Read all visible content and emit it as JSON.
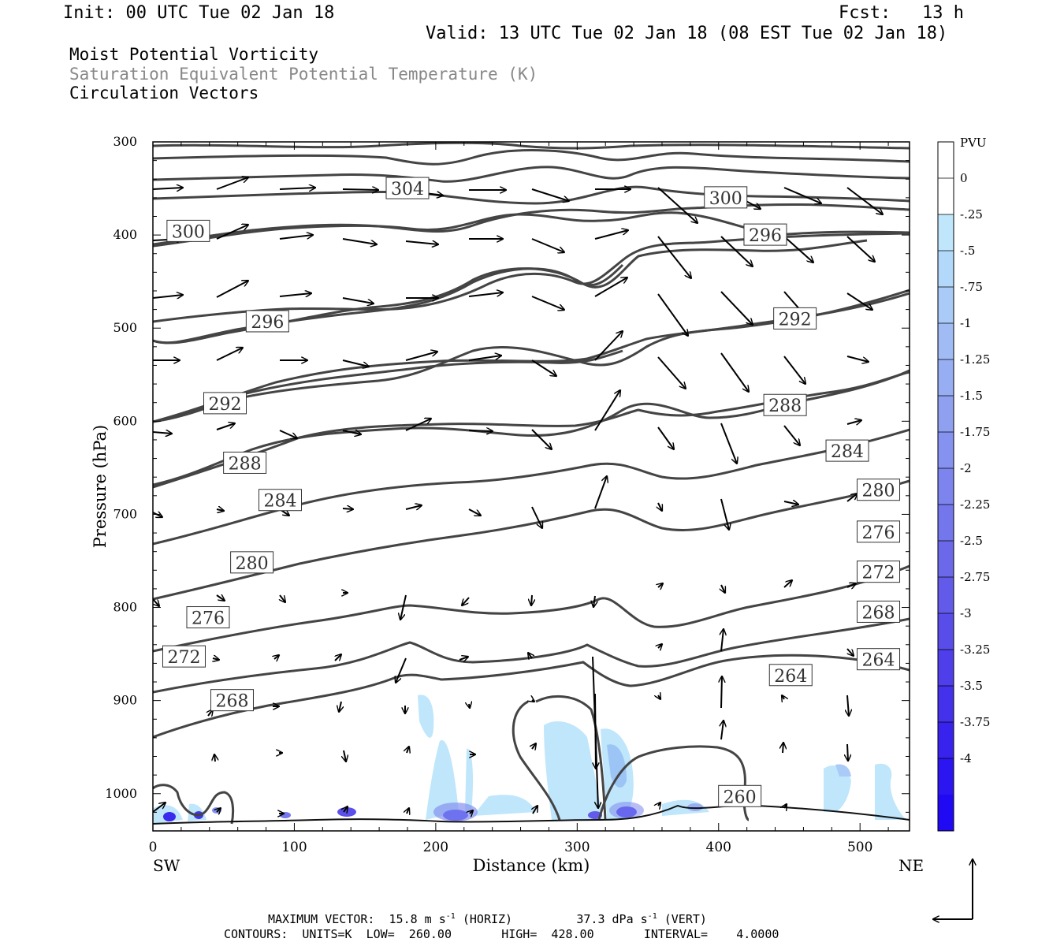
{
  "header": {
    "init": "Init: 00 UTC Tue 02 Jan 18",
    "fcst": "Fcst:   13 h",
    "valid": "Valid: 13 UTC Tue 02 Jan 18 (08 EST Tue 02 Jan 18)",
    "field1": "Moist Potential Vorticity",
    "field2": "Saturation Equivalent Potential Temperature (K)",
    "field3": "Circulation Vectors"
  },
  "footer": {
    "line1_a": "MAXIMUM VECTOR:  15.8 m s",
    "line1_sup1": "-1",
    "line1_b": " (HORIZ)         37.3 dPa s",
    "line1_sup2": "-1",
    "line1_c": " (VERT)",
    "line2": "CONTOURS:  UNITS=K  LOW=  260.00       HIGH=  428.00       INTERVAL=    4.0000"
  },
  "chart_data": {
    "type": "cross-section contour",
    "xlabel": "Distance (km)",
    "ylabel": "Pressure (hPa)",
    "xlim": [
      0,
      535
    ],
    "ylim": [
      1040,
      300
    ],
    "x_ticks": [
      0,
      100,
      200,
      300,
      400,
      500
    ],
    "x_tick_labels": [
      "0",
      "100",
      "200",
      "300",
      "400",
      "500"
    ],
    "y_ticks": [
      300,
      400,
      500,
      600,
      700,
      800,
      900,
      1000
    ],
    "y_tick_labels": [
      "300",
      "400",
      "500",
      "600",
      "700",
      "800",
      "900",
      "1000"
    ],
    "endpoints": {
      "left": "SW",
      "right": "NE"
    },
    "colorbar": {
      "units": "PVU",
      "labels": [
        "0",
        "-.25",
        "-.5",
        "-.75",
        "-1",
        "-1.25",
        "-1.5",
        "-1.75",
        "-2",
        "-2.25",
        "-2.5",
        "-2.75",
        "-3",
        "-3.25",
        "-3.5",
        "-3.75",
        "-4"
      ],
      "colors": [
        "#ffffff",
        "#ffffff",
        "#bfe6fb",
        "#b3d9fa",
        "#aacaf7",
        "#a1bcf5",
        "#98aef3",
        "#8fa0f1",
        "#8692ef",
        "#7d84ed",
        "#7476eb",
        "#6b69e9",
        "#625bea",
        "#594de9",
        "#4e3feb",
        "#4331ec",
        "#3823ee",
        "#2b15f0",
        "#1f0af3"
      ]
    },
    "contour_labels": [
      {
        "value": "304",
        "x": 180,
        "p": 350
      },
      {
        "value": "300",
        "x": 25,
        "p": 396
      },
      {
        "value": "300",
        "x": 405,
        "p": 360
      },
      {
        "value": "296",
        "x": 81,
        "p": 493
      },
      {
        "value": "296",
        "x": 433,
        "p": 400
      },
      {
        "value": "292",
        "x": 51,
        "p": 581
      },
      {
        "value": "292",
        "x": 454,
        "p": 490
      },
      {
        "value": "288",
        "x": 65,
        "p": 645
      },
      {
        "value": "288",
        "x": 447,
        "p": 583
      },
      {
        "value": "284",
        "x": 90,
        "p": 685
      },
      {
        "value": "284",
        "x": 491,
        "p": 632
      },
      {
        "value": "280",
        "x": 70,
        "p": 752
      },
      {
        "value": "280",
        "x": 513,
        "p": 674
      },
      {
        "value": "276",
        "x": 39,
        "p": 811
      },
      {
        "value": "276",
        "x": 513,
        "p": 719
      },
      {
        "value": "272",
        "x": 22,
        "p": 853
      },
      {
        "value": "272",
        "x": 513,
        "p": 762
      },
      {
        "value": "268",
        "x": 56,
        "p": 900
      },
      {
        "value": "268",
        "x": 513,
        "p": 805
      },
      {
        "value": "264",
        "x": 451,
        "p": 873
      },
      {
        "value": "264",
        "x": 513,
        "p": 856
      },
      {
        "value": "260",
        "x": 415,
        "p": 1003
      }
    ]
  }
}
